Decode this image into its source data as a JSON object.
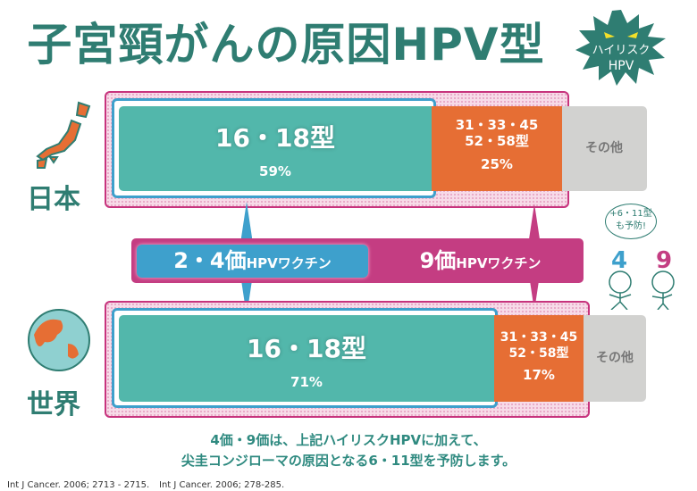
{
  "title": "子宮頸がんの原因HPV型",
  "badge": {
    "line1": "ハイリスク",
    "line2": "HPV",
    "color": "#2f7d72"
  },
  "japan": {
    "label": "日本",
    "main_type": "16・18型",
    "main_pct": "59%",
    "other_type_1": "31・33・45",
    "other_type_2": "52・58型",
    "other_pct": "25%",
    "rest": "その他"
  },
  "world": {
    "label": "世界",
    "main_type": "16・18型",
    "main_pct": "71%",
    "other_type_1": "31・33・45",
    "other_type_2": "52・58型",
    "other_pct": "17%",
    "rest": "その他"
  },
  "vaccines": {
    "v24_num": "2・4価",
    "v24_suffix": "HPVワクチン",
    "v9_num": "9価",
    "v9_suffix": "HPVワクチン"
  },
  "bubble": {
    "line1": "+6・11型",
    "line2": "も予防!"
  },
  "characters": {
    "left": "4",
    "right": "9"
  },
  "note": {
    "line1": "4価・9価は、上記ハイリスクHPVに加えて、",
    "line2": "尖圭コンジローマの原因となる6・11型を予防します。"
  },
  "citations": [
    "Int J Cancer. 2006; 2713 - 2715.",
    "Int J Cancer. 2006; 278-285."
  ],
  "colors": {
    "teal": "#52b7ab",
    "orange": "#e66e34",
    "gray": "#d2d2d0",
    "magenta": "#c43d82",
    "blue": "#3ea0cc",
    "title": "#2f7d72"
  }
}
